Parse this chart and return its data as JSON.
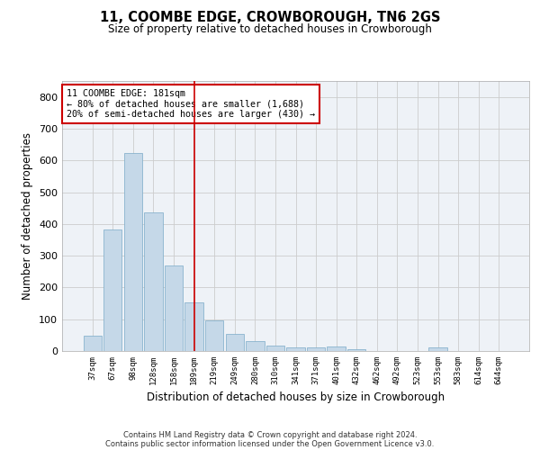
{
  "title": "11, COOMBE EDGE, CROWBOROUGH, TN6 2GS",
  "subtitle": "Size of property relative to detached houses in Crowborough",
  "xlabel": "Distribution of detached houses by size in Crowborough",
  "ylabel": "Number of detached properties",
  "categories": [
    "37sqm",
    "67sqm",
    "98sqm",
    "128sqm",
    "158sqm",
    "189sqm",
    "219sqm",
    "249sqm",
    "280sqm",
    "310sqm",
    "341sqm",
    "371sqm",
    "401sqm",
    "432sqm",
    "462sqm",
    "492sqm",
    "523sqm",
    "553sqm",
    "583sqm",
    "614sqm",
    "644sqm"
  ],
  "values": [
    47,
    383,
    622,
    437,
    268,
    152,
    97,
    53,
    32,
    18,
    10,
    10,
    13,
    5,
    0,
    0,
    0,
    10,
    0,
    0,
    0
  ],
  "bar_color": "#c5d8e8",
  "bar_edgecolor": "#7aaac8",
  "grid_color": "#cccccc",
  "bg_color": "#eef2f7",
  "vline_index": 5,
  "vline_color": "#cc0000",
  "annotation_text": "11 COOMBE EDGE: 181sqm\n← 80% of detached houses are smaller (1,688)\n20% of semi-detached houses are larger (430) →",
  "annotation_box_facecolor": "#ffffff",
  "annotation_box_edgecolor": "#cc0000",
  "footer_line1": "Contains HM Land Registry data © Crown copyright and database right 2024.",
  "footer_line2": "Contains public sector information licensed under the Open Government Licence v3.0.",
  "ylim": [
    0,
    850
  ],
  "yticks": [
    0,
    100,
    200,
    300,
    400,
    500,
    600,
    700,
    800
  ]
}
